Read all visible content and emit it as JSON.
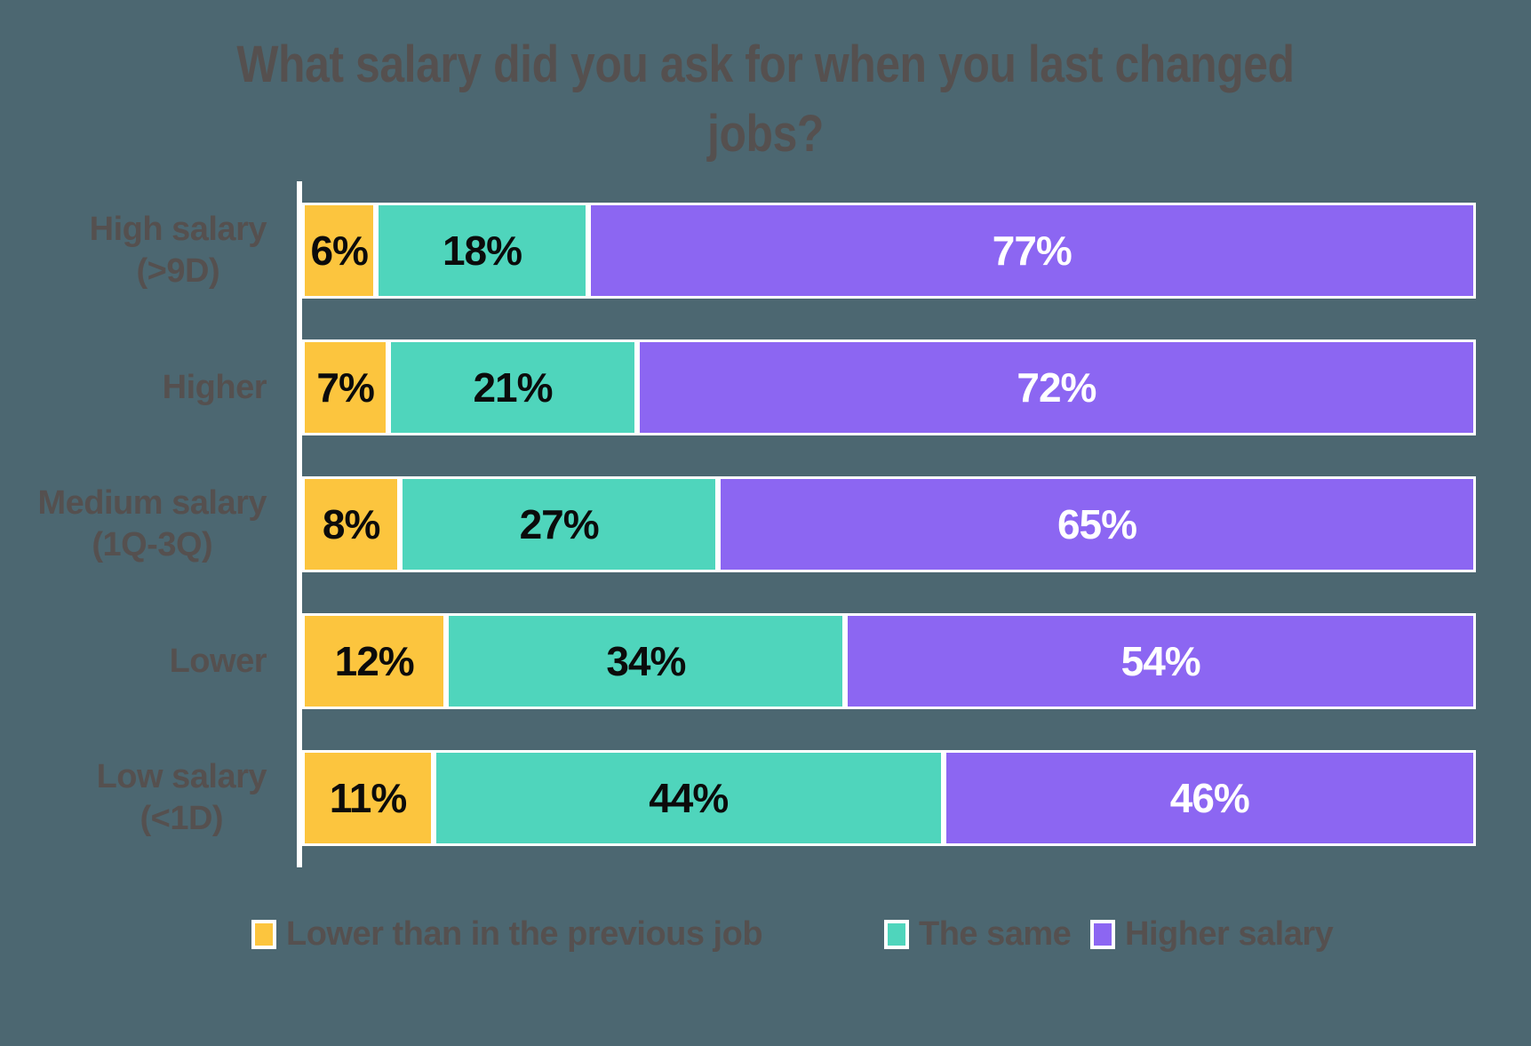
{
  "title": {
    "line1": "What salary did you ask for when you last changed",
    "line2": "jobs?"
  },
  "chart_data": {
    "type": "bar",
    "orientation": "horizontal",
    "stacked": true,
    "title": "What salary did you ask for when you last changed jobs?",
    "value_suffix": "%",
    "xlim": [
      0,
      100
    ],
    "gridlines": false,
    "legend_position": "bottom",
    "background_color": "#4C6771",
    "axis_color": "#FFFFFF",
    "text_color": "#55504F",
    "categories": [
      {
        "label": "High salary (>9D)",
        "lines": [
          "High salary",
          "(>9D)"
        ]
      },
      {
        "label": "Higher",
        "lines": [
          "Higher"
        ]
      },
      {
        "label": "Medium salary (1Q-3Q)",
        "lines": [
          "Medium salary",
          "(1Q-3Q)"
        ]
      },
      {
        "label": "Lower",
        "lines": [
          "Lower"
        ]
      },
      {
        "label": "Low salary (<1D)",
        "lines": [
          "Low salary",
          "(<1D)"
        ]
      }
    ],
    "series": [
      {
        "name": "Lower than in the previous job",
        "color": "#FCC53E",
        "label_color": "#0B0B0B",
        "values": [
          6,
          7,
          8,
          12,
          11
        ]
      },
      {
        "name": "The same",
        "color": "#4FD5BC",
        "label_color": "#0B0B0B",
        "values": [
          18,
          21,
          27,
          34,
          44
        ]
      },
      {
        "name": "Higher salary",
        "color": "#8C66F2",
        "label_color": "#FFFFFF",
        "values": [
          77,
          72,
          65,
          54,
          46
        ]
      }
    ]
  }
}
